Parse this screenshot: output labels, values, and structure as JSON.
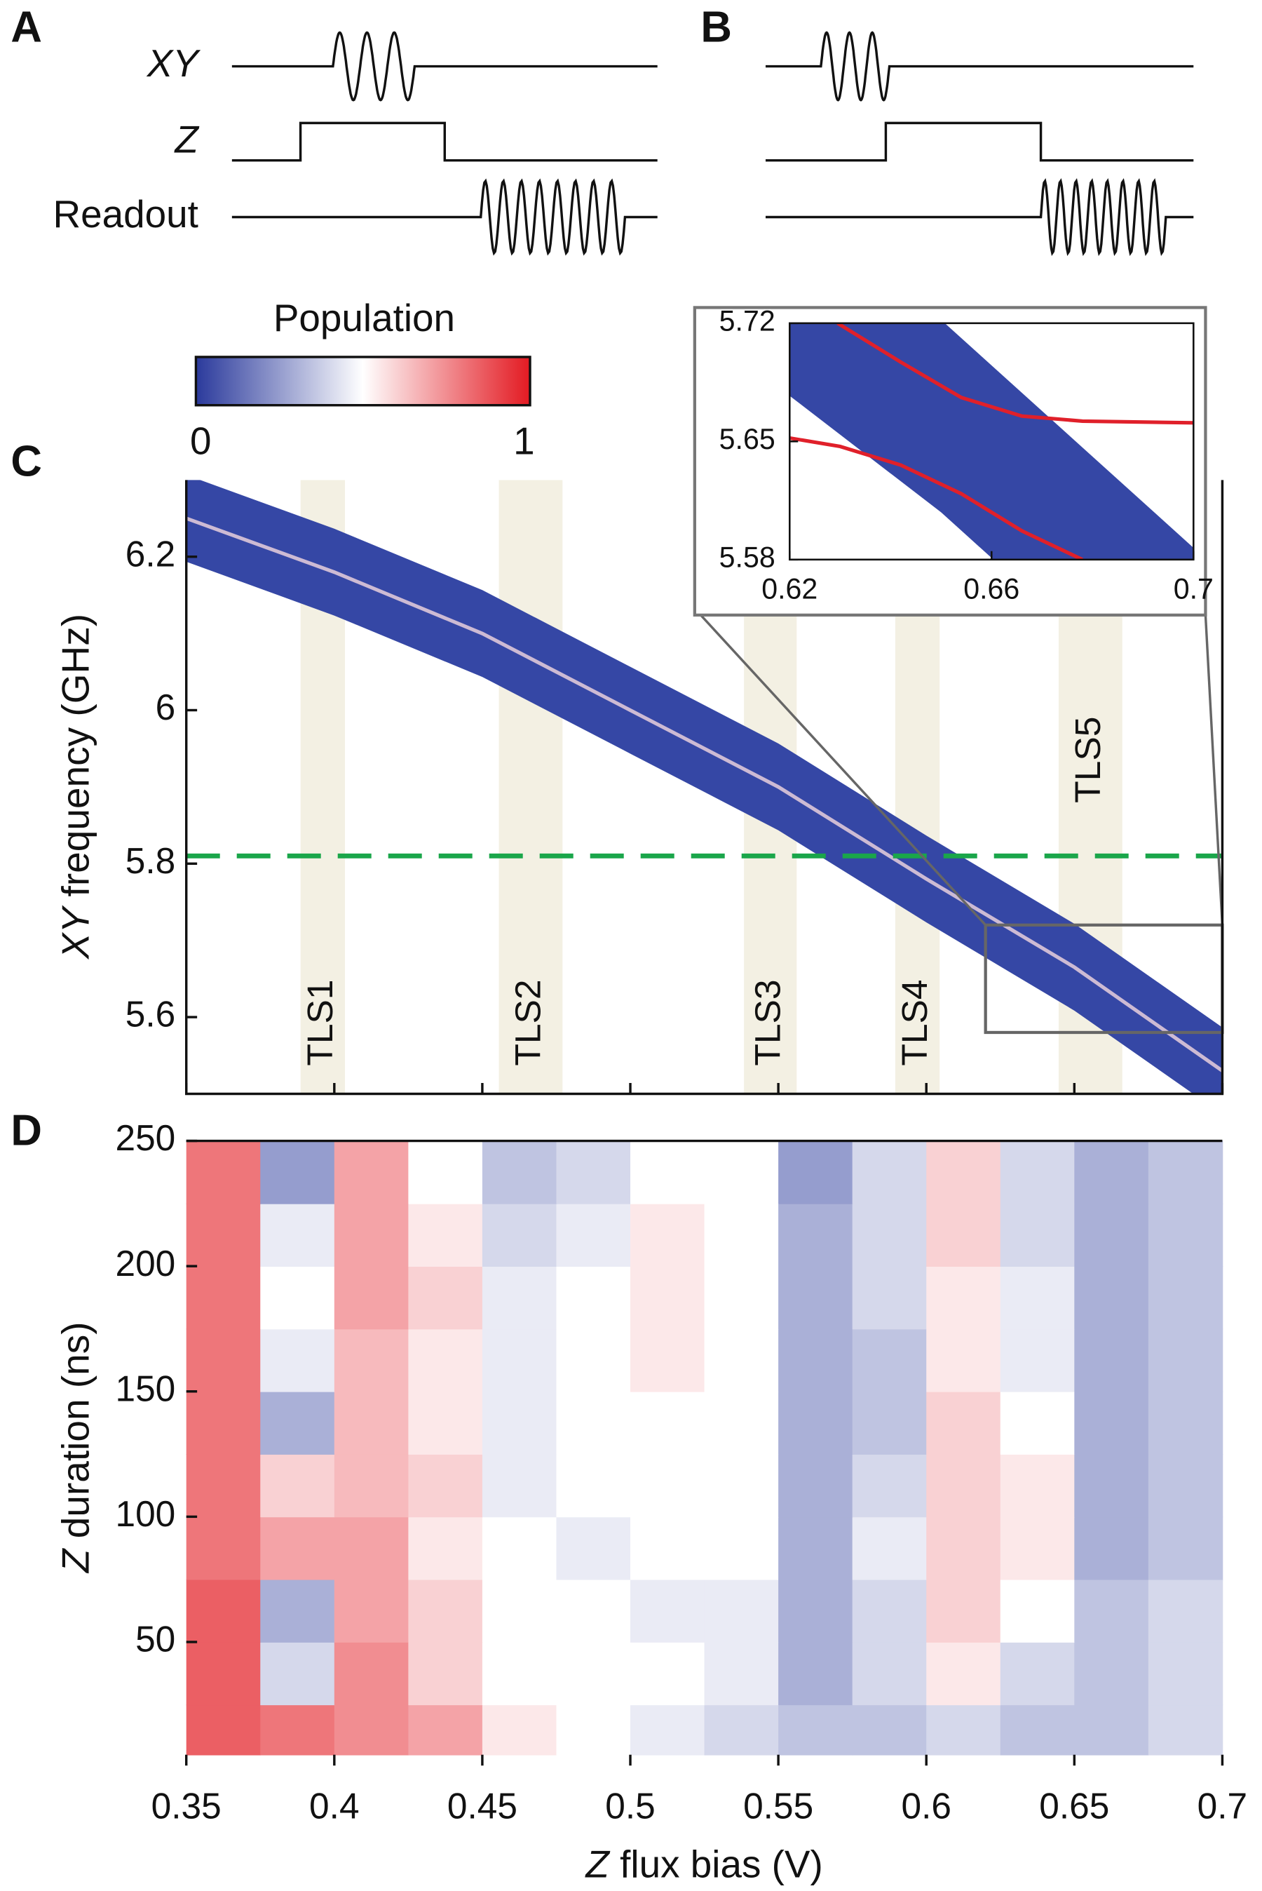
{
  "panel_labels": [
    "A",
    "B",
    "C",
    "D"
  ],
  "pulse_sequence": {
    "channels": [
      "XY",
      "Z",
      "Readout"
    ]
  },
  "colorbar": {
    "title": "Population",
    "ticks": [
      0,
      1
    ],
    "colors": [
      "#2b3a9c",
      "#ffffff",
      "#e31a22"
    ]
  },
  "chart_data": [
    {
      "type": "band",
      "y_label_var": "XY",
      "y_label": "frequency (GHz)",
      "xlim": [
        0.35,
        0.7
      ],
      "ylim": [
        5.5,
        6.3
      ],
      "xticks": [
        0.35,
        0.4,
        0.45,
        0.5,
        0.55,
        0.6,
        0.65,
        0.7
      ],
      "yticks": [
        5.6,
        5.8,
        6,
        6.2
      ],
      "x": [
        0.35,
        0.4,
        0.45,
        0.5,
        0.55,
        0.6,
        0.65,
        0.7
      ],
      "values": [
        6.25,
        6.18,
        6.1,
        6.0,
        5.9,
        5.78,
        5.665,
        5.53
      ],
      "color": "#3547a5",
      "spans": [
        {
          "label": "TLS1",
          "x": [
            0.3886,
            0.4036
          ]
        },
        {
          "label": "TLS2",
          "x": [
            0.4556,
            0.4771
          ]
        },
        {
          "label": "TLS3",
          "x": [
            0.5384,
            0.5562
          ]
        },
        {
          "label": "TLS4",
          "x": [
            0.5895,
            0.6045
          ]
        },
        {
          "label": "TLS5",
          "x": [
            0.6447,
            0.6662
          ]
        }
      ],
      "span_color": "#f3f0e3",
      "hline": {
        "value": 5.81,
        "color": "#1aa64a"
      },
      "zoom_box": {
        "x": [
          0.62,
          0.7
        ],
        "y": [
          5.58,
          5.72
        ]
      }
    },
    {
      "type": "inset",
      "xlim": [
        0.62,
        0.7
      ],
      "ylim": [
        5.58,
        5.72
      ],
      "xticks": [
        0.62,
        0.66,
        0.7
      ],
      "yticks": [
        5.58,
        5.65,
        5.72
      ],
      "series": [
        {
          "x": [
            0.6295,
            0.642,
            0.654,
            0.666,
            0.678,
            0.7
          ],
          "values": [
            5.72,
            5.697,
            5.676,
            5.665,
            5.662,
            5.661
          ],
          "color": "#e0202a"
        },
        {
          "x": [
            0.62,
            0.63,
            0.642,
            0.654,
            0.666,
            0.678
          ],
          "values": [
            5.652,
            5.647,
            5.636,
            5.619,
            5.597,
            5.58
          ],
          "color": "#e0202a"
        }
      ]
    },
    {
      "type": "heatmap",
      "x_label_var": "Z",
      "x_label": "flux bias (V)",
      "y_label_var": "Z",
      "y_label": "duration (ns)",
      "xlim": [
        0.35,
        0.7
      ],
      "ylim": [
        5,
        250
      ],
      "xticks": [
        0.35,
        0.4,
        0.45,
        0.5,
        0.55,
        0.6,
        0.65,
        0.7
      ],
      "yticks": [
        50,
        100,
        150,
        200,
        250
      ],
      "xbins": [
        0.35,
        0.375,
        0.4,
        0.425,
        0.45,
        0.475,
        0.5,
        0.525,
        0.55,
        0.575,
        0.6,
        0.625,
        0.65,
        0.675,
        0.7
      ],
      "ybins": [
        5,
        25,
        50,
        75,
        100,
        125,
        150,
        175,
        200,
        225,
        250
      ],
      "z": [
        [
          0.85,
          0.8,
          0.75,
          0.7,
          0.55,
          0.5,
          0.45,
          0.4,
          0.35,
          0.35,
          0.4,
          0.35,
          0.35,
          0.4
        ],
        [
          0.85,
          0.4,
          0.75,
          0.6,
          0.5,
          0.5,
          0.5,
          0.45,
          0.3,
          0.4,
          0.55,
          0.4,
          0.35,
          0.4
        ],
        [
          0.85,
          0.3,
          0.7,
          0.6,
          0.5,
          0.5,
          0.45,
          0.45,
          0.3,
          0.4,
          0.6,
          0.5,
          0.35,
          0.4
        ],
        [
          0.8,
          0.7,
          0.7,
          0.55,
          0.5,
          0.45,
          0.5,
          0.5,
          0.3,
          0.45,
          0.6,
          0.55,
          0.3,
          0.35
        ],
        [
          0.8,
          0.6,
          0.65,
          0.6,
          0.45,
          0.5,
          0.5,
          0.5,
          0.3,
          0.4,
          0.6,
          0.55,
          0.3,
          0.35
        ],
        [
          0.8,
          0.3,
          0.65,
          0.55,
          0.45,
          0.5,
          0.5,
          0.5,
          0.3,
          0.35,
          0.6,
          0.5,
          0.3,
          0.35
        ],
        [
          0.8,
          0.45,
          0.65,
          0.55,
          0.45,
          0.5,
          0.55,
          0.5,
          0.3,
          0.35,
          0.55,
          0.45,
          0.3,
          0.35
        ],
        [
          0.8,
          0.5,
          0.7,
          0.6,
          0.45,
          0.5,
          0.55,
          0.5,
          0.3,
          0.4,
          0.55,
          0.45,
          0.3,
          0.35
        ],
        [
          0.8,
          0.45,
          0.7,
          0.55,
          0.4,
          0.45,
          0.55,
          0.5,
          0.3,
          0.4,
          0.6,
          0.4,
          0.3,
          0.35
        ],
        [
          0.8,
          0.25,
          0.7,
          0.5,
          0.35,
          0.4,
          0.5,
          0.5,
          0.25,
          0.4,
          0.6,
          0.4,
          0.3,
          0.35
        ]
      ]
    }
  ]
}
